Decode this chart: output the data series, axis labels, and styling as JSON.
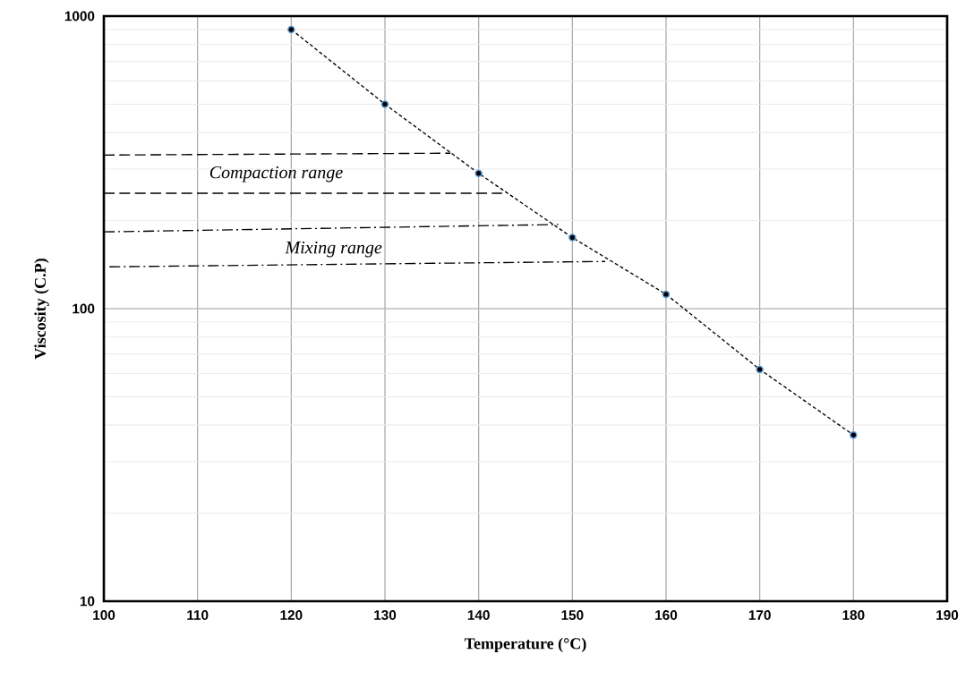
{
  "chart_data": {
    "type": "line",
    "xlabel": "Temperature (°C)",
    "ylabel": "Viscosity (C.P)",
    "x": [
      120,
      130,
      140,
      150,
      160,
      170,
      180
    ],
    "series": [
      {
        "color": "#5b9bd5",
        "values": [
          900,
          500,
          290,
          175,
          112,
          62,
          37
        ],
        "marker": "circle",
        "line_style": "dashed"
      },
      {
        "type": "line",
        "color": "#000000",
        "x": [
          100,
          137
        ],
        "values": [
          335,
          340
        ],
        "line_style": "dashed",
        "marker": "none"
      },
      {
        "type": "line",
        "color": "#000000",
        "x": [
          100,
          142.5
        ],
        "values": [
          248,
          248
        ],
        "line_style": "dashed",
        "marker": "none"
      },
      {
        "type": "line",
        "color": "#000000",
        "x": [
          100,
          148.5
        ],
        "values": [
          183,
          194
        ],
        "line_style": "dashdot",
        "marker": "none"
      },
      {
        "type": "line",
        "color": "#000000",
        "x": [
          100.6,
          153.5
        ],
        "values": [
          139,
          145
        ],
        "line_style": "dashdot",
        "marker": "none"
      }
    ],
    "annotations": [
      "*Compaction range*",
      "*Mixing range*"
    ],
    "log": "y",
    "grid": true,
    "xlim": [
      100,
      190
    ],
    "xticks": [
      100,
      110,
      120,
      130,
      140,
      150,
      160,
      170,
      180,
      190
    ],
    "ylim": [
      10,
      1000
    ],
    "yticks": [
      10,
      100,
      1000
    ]
  }
}
